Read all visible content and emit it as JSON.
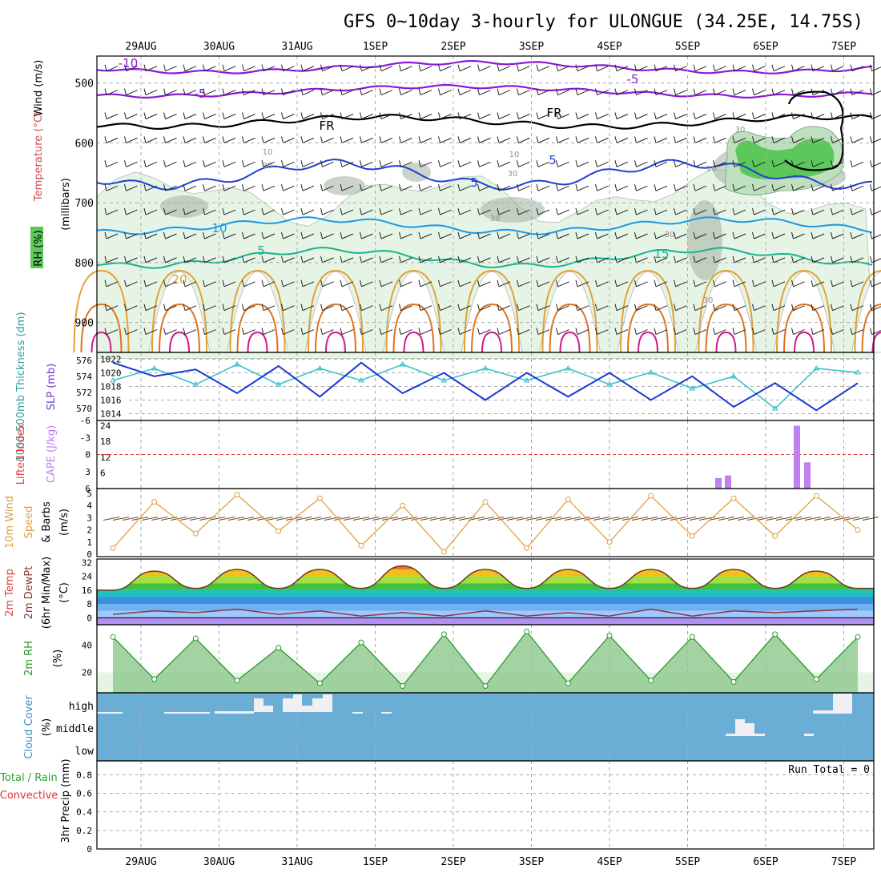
{
  "title": "GFS 0~10day 3-hourly for ULONGUE (34.25E, 14.75S)",
  "dates": [
    "29AUG",
    "30AUG",
    "31AUG",
    "1SEP",
    "2SEP",
    "3SEP",
    "4SEP",
    "5SEP",
    "6SEP",
    "7SEP"
  ],
  "panels": {
    "upper": {
      "ylabel_rh": "RH (%)",
      "ylabel_temp": "Temperature (°C)",
      "ylabel_wind": "Wind (m/s)",
      "ylabel_mb": "(millibars)",
      "pressure_ticks": [
        "500",
        "600",
        "700",
        "800",
        "900"
      ]
    },
    "pressure": {
      "ylabel_thick": "1000-500mb Thickness (dm)",
      "ylabel_slp": "SLP (mb)",
      "left_ticks": [
        "576",
        "574",
        "572",
        "570"
      ],
      "right_ticks": [
        "1022",
        "1020",
        "1018",
        "1016",
        "1014"
      ]
    },
    "cape": {
      "ylabel_li": "Lifted Index",
      "ylabel_cape": "CAPE (J/kg)",
      "left_ticks": [
        "-6",
        "-3",
        "0",
        "3",
        "6"
      ],
      "right_ticks": [
        "24",
        "18",
        "12",
        "6"
      ]
    },
    "wind10": {
      "ylabel_a": "10m Wind",
      "ylabel_b": "Speed",
      "ylabel_c": "& Barbs",
      "ylabel_unit": "(m/s)",
      "ticks": [
        "5",
        "4",
        "3",
        "2",
        "1",
        "0"
      ]
    },
    "temp2m": {
      "ylabel_a": "2m Temp",
      "ylabel_b": "2m DewPt",
      "ylabel_c": "(6hr Min/Max)",
      "ylabel_unit": "(°C)",
      "ticks": [
        "32",
        "24",
        "16",
        "8",
        "0"
      ]
    },
    "rh2m": {
      "ylabel": "2m RH",
      "ylabel_unit": "(%)",
      "ticks": [
        "40",
        "20"
      ]
    },
    "cloud": {
      "ylabel": "Cloud Cover",
      "ylabel_unit": "(%)",
      "levels": [
        "high",
        "middle",
        "low"
      ]
    },
    "precip": {
      "ylabel_a": "Total / Rain",
      "ylabel_b": "Convective",
      "ylabel_c": "3hr Precip (mm)",
      "ticks": [
        "0.8",
        "0.6",
        "0.4",
        "0.2",
        "0"
      ],
      "run_total": "Run Total = 0"
    }
  },
  "contour_labels": {
    "temp": [
      "-10",
      "-5",
      "-5",
      "FR",
      "FR",
      "5",
      "5",
      "10",
      "5",
      "15",
      "20"
    ],
    "rh": [
      "10",
      "30",
      "10",
      "30",
      "30",
      "30",
      "10",
      "30",
      "30"
    ]
  },
  "colors": {
    "frame": "#000000",
    "grid": "#aaaaaa",
    "rh_light": "#e6f4e6",
    "rh_mid": "#bfe0bf",
    "rh_dark": "#8fbf8f",
    "rh_gray": "#a0b0a0",
    "rh_green": "#5cc85c",
    "temp_purple": "#8a1ad8",
    "temp_black": "#000000",
    "temp_blue": "#2040d0",
    "temp_lightblue": "#1a9ae6",
    "temp_teal": "#14b48c",
    "temp_orange": "#e0a030",
    "temp_darkorange": "#e0701a",
    "temp_magenta": "#d01a8a",
    "slp": "#1a3ad0",
    "thickness": "#30c0c8",
    "cape": "#c080f0",
    "li": "#e04040",
    "wind_speed": "#e0a040",
    "barb": "#6b4a2a",
    "cloud_bg": "#6aaed6",
    "cloud_fill": "#f0f0f4",
    "precip_total": "#30a030",
    "precip_conv": "#e03030",
    "rh2m_fill": "#8cc88c",
    "rh2m_line": "#2a9a2a"
  },
  "chart_data": [
    {
      "type": "line",
      "title": "",
      "ylabel": "SLP (mb)",
      "x": [
        "29AUG 00",
        "29AUG 12",
        "30AUG 00",
        "30AUG 12",
        "31AUG 00",
        "31AUG 12",
        "1SEP 00",
        "1SEP 12",
        "2SEP 00",
        "2SEP 12",
        "3SEP 00",
        "3SEP 12",
        "4SEP 00",
        "4SEP 12",
        "5SEP 00",
        "5SEP 12",
        "6SEP 00",
        "6SEP 12",
        "7SEP 00"
      ],
      "series": [
        {
          "name": "SLP (mb)",
          "values": [
            1021.5,
            1019.5,
            1020.5,
            1017.0,
            1021.0,
            1016.5,
            1021.5,
            1017.0,
            1020.0,
            1016.0,
            1020.0,
            1016.5,
            1020.0,
            1016.0,
            1019.5,
            1015.0,
            1018.5,
            1014.5,
            1018.5
          ]
        },
        {
          "name": "1000-500mb Thickness (dm)",
          "values": [
            573.5,
            575.0,
            573.0,
            575.5,
            573.0,
            575.0,
            573.5,
            575.5,
            573.5,
            575.0,
            573.5,
            575.0,
            573.0,
            574.5,
            572.5,
            574.0,
            570.0,
            575.0,
            574.5
          ]
        }
      ],
      "ylim": [
        1013,
        1023
      ]
    },
    {
      "type": "bar",
      "title": "",
      "ylabel": "CAPE (J/kg)",
      "x": [
        "5SEP 12",
        "5SEP 15",
        "6SEP 09",
        "6SEP 12"
      ],
      "values": [
        4,
        5,
        24,
        10
      ],
      "ylim": [
        0,
        24
      ]
    },
    {
      "type": "line",
      "title": "",
      "ylabel": "10m Wind Speed (m/s)",
      "x": [
        "29AUG 00",
        "29AUG 12",
        "30AUG 00",
        "30AUG 12",
        "31AUG 00",
        "31AUG 12",
        "1SEP 00",
        "1SEP 12",
        "2SEP 00",
        "2SEP 12",
        "3SEP 00",
        "3SEP 12",
        "4SEP 00",
        "4SEP 12",
        "5SEP 00",
        "5SEP 12",
        "6SEP 00",
        "6SEP 12",
        "7SEP 00"
      ],
      "values": [
        0.5,
        4.3,
        1.7,
        4.9,
        1.9,
        4.6,
        0.7,
        4.0,
        0.2,
        4.3,
        0.5,
        4.5,
        1.0,
        4.8,
        1.5,
        4.6,
        1.5,
        4.8,
        2.0
      ],
      "ylim": [
        0,
        5
      ]
    },
    {
      "type": "area",
      "title": "",
      "ylabel": "2m Temp (°C)",
      "x": [
        "29AUG 00",
        "29AUG 12",
        "30AUG 00",
        "30AUG 12",
        "31AUG 00",
        "31AUG 12",
        "1SEP 00",
        "1SEP 12",
        "2SEP 00",
        "2SEP 12",
        "3SEP 00",
        "3SEP 12",
        "4SEP 00",
        "4SEP 12",
        "5SEP 00",
        "5SEP 12",
        "6SEP 00",
        "6SEP 12",
        "7SEP 00"
      ],
      "series": [
        {
          "name": "2m Temp",
          "values": [
            16,
            27,
            17,
            28,
            17,
            28,
            17,
            30,
            17,
            28,
            17,
            28,
            17,
            28,
            17,
            28,
            17,
            27,
            17
          ]
        },
        {
          "name": "2m DewPt",
          "values": [
            2,
            4,
            3,
            5,
            2,
            4,
            1,
            3,
            1,
            4,
            1,
            3,
            1,
            5,
            1,
            4,
            3,
            4,
            5
          ]
        }
      ],
      "ylim": [
        -4,
        34
      ]
    },
    {
      "type": "area",
      "title": "",
      "ylabel": "2m RH (%)",
      "x": [
        "29AUG 00",
        "29AUG 12",
        "30AUG 00",
        "30AUG 12",
        "31AUG 00",
        "31AUG 12",
        "1SEP 00",
        "1SEP 12",
        "2SEP 00",
        "2SEP 12",
        "3SEP 00",
        "3SEP 12",
        "4SEP 00",
        "4SEP 12",
        "5SEP 00",
        "5SEP 12",
        "6SEP 00",
        "6SEP 12",
        "7SEP 00"
      ],
      "values": [
        46,
        15,
        45,
        14,
        38,
        12,
        42,
        10,
        48,
        10,
        50,
        12,
        47,
        14,
        46,
        13,
        48,
        15,
        46
      ],
      "ylim": [
        5,
        55
      ]
    },
    {
      "type": "bar",
      "title": "",
      "ylabel": "3hr Precip (mm)",
      "categories": [
        "29AUG",
        "30AUG",
        "31AUG",
        "1SEP",
        "2SEP",
        "3SEP",
        "4SEP",
        "5SEP",
        "6SEP",
        "7SEP"
      ],
      "values": [
        0,
        0,
        0,
        0,
        0,
        0,
        0,
        0,
        0,
        0
      ],
      "ylim": [
        0,
        0.9
      ]
    }
  ]
}
